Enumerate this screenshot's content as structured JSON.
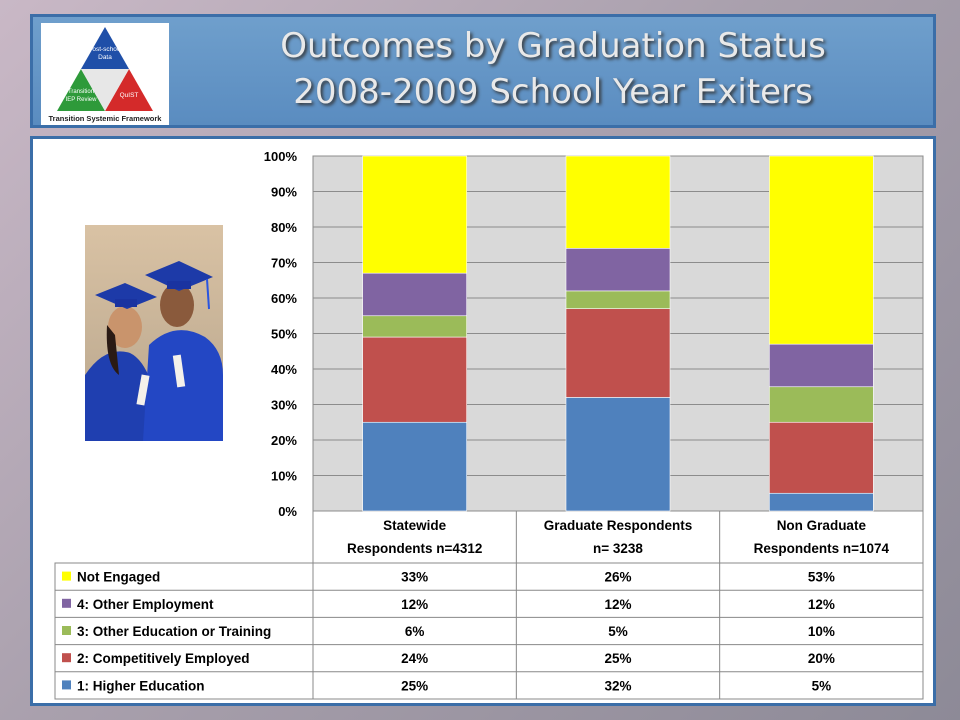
{
  "header": {
    "title_line1": "Outcomes by Graduation Status",
    "title_line2": "2008-2009 School Year Exiters",
    "logo": {
      "top_label": [
        "Post-school",
        "Data"
      ],
      "left_label": [
        "Transition",
        "IEP Review"
      ],
      "right_label": "QuIST",
      "caption": "Transition Systemic Framework"
    }
  },
  "photo": {
    "icon": "graduates-photo"
  },
  "chart_data": {
    "type": "bar",
    "stacked": true,
    "categories": [
      [
        "Statewide",
        "Respondents n=4312"
      ],
      [
        "Graduate Respondents",
        "n= 3238"
      ],
      [
        "Non Graduate",
        "Respondents n=1074"
      ]
    ],
    "series": [
      {
        "name": "1: Higher Education",
        "color": "#4f81bd",
        "values": [
          25,
          32,
          5
        ]
      },
      {
        "name": "2: Competitively Employed",
        "color": "#c0504d",
        "values": [
          24,
          25,
          20
        ]
      },
      {
        "name": "3: Other Education or Training",
        "color": "#9bbb59",
        "values": [
          6,
          5,
          10
        ]
      },
      {
        "name": "4: Other Employment",
        "color": "#8064a2",
        "values": [
          12,
          12,
          12
        ]
      },
      {
        "name": "Not Engaged",
        "color": "#ffff00",
        "values": [
          33,
          26,
          53
        ]
      }
    ],
    "y_ticks": [
      "0%",
      "10%",
      "20%",
      "30%",
      "40%",
      "50%",
      "60%",
      "70%",
      "80%",
      "90%",
      "100%"
    ],
    "ylim": [
      0,
      100
    ],
    "grid": true,
    "table": {
      "row_order": [
        "Not Engaged",
        "4: Other Employment",
        "3: Other Education or Training",
        "2: Competitively Employed",
        "1: Higher Education"
      ],
      "rows": [
        {
          "label": "Not Engaged",
          "color": "#ffff00",
          "cells": [
            "33%",
            "26%",
            "53%"
          ]
        },
        {
          "label": "4: Other Employment",
          "color": "#8064a2",
          "cells": [
            "12%",
            "12%",
            "12%"
          ]
        },
        {
          "label": "3: Other Education or Training",
          "color": "#9bbb59",
          "cells": [
            "6%",
            "5%",
            "10%"
          ]
        },
        {
          "label": "2: Competitively Employed",
          "color": "#c0504d",
          "cells": [
            "24%",
            "25%",
            "20%"
          ]
        },
        {
          "label": "1: Higher Education",
          "color": "#4f81bd",
          "cells": [
            "25%",
            "32%",
            "5%"
          ]
        }
      ]
    }
  }
}
